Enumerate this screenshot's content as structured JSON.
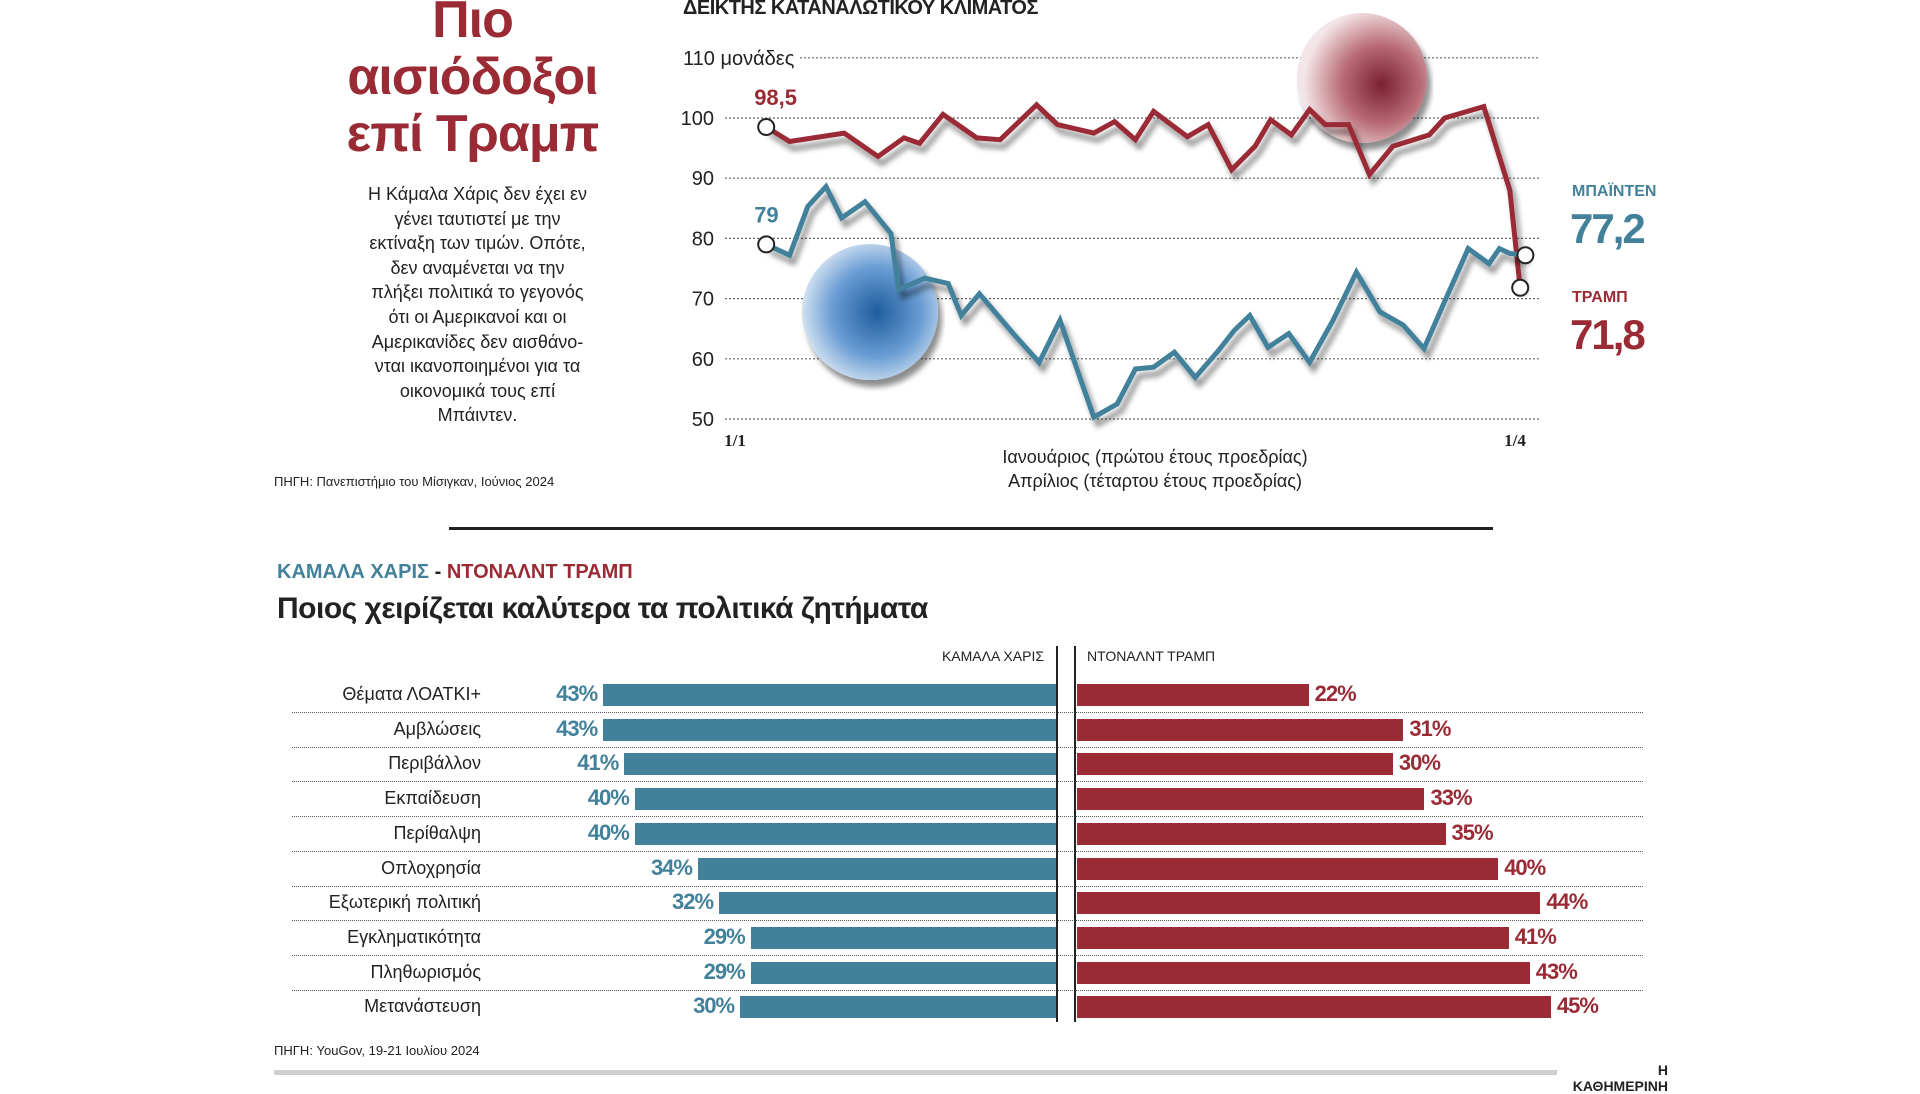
{
  "headline": {
    "lines": [
      "Πιο",
      "αισιόδοξοι",
      "επί Τραμπ"
    ]
  },
  "intro": {
    "lines": [
      "Η Κάμαλα Χάρις δεν έχει εν",
      "γένει ταυτιστεί με την",
      "εκτίναξη των τιμών. Οπότε,",
      "δεν αναμένεται να την",
      "πλήξει πολιτικά το γεγονός",
      "ότι οι Αμερικανοί και οι",
      "Αμερικανίδες δεν αισθάνο-",
      "νται ικανοποιημένοι για τα",
      "οικονομικά τους επί",
      "Μπάιντεν."
    ]
  },
  "source1": "ΠΗΓΗ: Πανεπιστήμιο του Μίσιγκαν, Ιούνιος 2024",
  "source2": "ΠΗΓΗ: YouGov, 19-21 Ιουλίου 2024",
  "brand": "Η ΚΑΘΗΜΕΡΙΝΗ",
  "colors": {
    "blue": "#43819b",
    "red": "#9a2b35"
  },
  "icons": {
    "trump_photo": "trump-portrait-icon",
    "biden_photo": "biden-portrait-icon"
  },
  "chart_data": [
    {
      "type": "line",
      "title": "ΔΕΙΚΤΗΣ ΚΑΤΑΝΑΛΩΤΙΚΟΥ ΚΛΙΜΑΤΟΣ",
      "ylabel": "μονάδες",
      "ylim": [
        50,
        110
      ],
      "yticks": [
        "50",
        "60",
        "70",
        "80",
        "90",
        "100",
        "110 μονάδες"
      ],
      "ytick_values": [
        50,
        60,
        70,
        80,
        90,
        100,
        110
      ],
      "xlim": [
        1,
        4
      ],
      "xticks": [
        "1/1",
        "1/4"
      ],
      "xtick_values": [
        1,
        4
      ],
      "xlabel_lines": [
        "Ιανουάριος (πρώτου έτους προεδρίας)",
        "Απρίλιος (τέταρτου έτους προεδρίας)"
      ],
      "grid": true,
      "series": [
        {
          "name": "ΤΡΑΜΠ",
          "color": "#9a2b35",
          "start_label": "98,5",
          "end_label": "71,8",
          "points": [
            [
              1.12,
              98.5
            ],
            [
              1.21,
              96.1
            ],
            [
              1.42,
              97.5
            ],
            [
              1.55,
              93.6
            ],
            [
              1.65,
              96.7
            ],
            [
              1.71,
              95.8
            ],
            [
              1.8,
              100.6
            ],
            [
              1.93,
              96.7
            ],
            [
              2.02,
              96.4
            ],
            [
              2.16,
              102.2
            ],
            [
              2.24,
              98.9
            ],
            [
              2.38,
              97.5
            ],
            [
              2.46,
              99.4
            ],
            [
              2.54,
              96.4
            ],
            [
              2.61,
              101.1
            ],
            [
              2.74,
              96.9
            ],
            [
              2.82,
              98.9
            ],
            [
              2.91,
              91.4
            ],
            [
              3.0,
              95.3
            ],
            [
              3.06,
              99.7
            ],
            [
              3.14,
              97.2
            ],
            [
              3.21,
              101.4
            ],
            [
              3.27,
              98.9
            ],
            [
              3.36,
              98.9
            ],
            [
              3.44,
              90.6
            ],
            [
              3.53,
              95.3
            ],
            [
              3.67,
              97.2
            ],
            [
              3.73,
              100.0
            ],
            [
              3.88,
              101.9
            ],
            [
              3.98,
              88.0
            ],
            [
              4.02,
              71.8
            ]
          ]
        },
        {
          "name": "ΜΠΑΪΝΤΕΝ",
          "color": "#43819b",
          "start_label": "79",
          "end_label": "77,2",
          "points": [
            [
              1.12,
              79.0
            ],
            [
              1.21,
              77.2
            ],
            [
              1.28,
              85.3
            ],
            [
              1.35,
              88.6
            ],
            [
              1.41,
              83.4
            ],
            [
              1.5,
              86.1
            ],
            [
              1.6,
              80.8
            ],
            [
              1.63,
              71.5
            ],
            [
              1.73,
              73.4
            ],
            [
              1.82,
              72.5
            ],
            [
              1.87,
              67.2
            ],
            [
              1.94,
              70.8
            ],
            [
              2.07,
              64.2
            ],
            [
              2.17,
              59.4
            ],
            [
              2.25,
              66.4
            ],
            [
              2.38,
              50.3
            ],
            [
              2.47,
              52.5
            ],
            [
              2.54,
              58.3
            ],
            [
              2.61,
              58.6
            ],
            [
              2.69,
              61.1
            ],
            [
              2.77,
              56.9
            ],
            [
              2.86,
              61.4
            ],
            [
              2.92,
              64.7
            ],
            [
              2.98,
              67.2
            ],
            [
              3.05,
              61.9
            ],
            [
              3.13,
              64.2
            ],
            [
              3.21,
              59.4
            ],
            [
              3.3,
              66.4
            ],
            [
              3.39,
              74.4
            ],
            [
              3.48,
              67.8
            ],
            [
              3.57,
              65.6
            ],
            [
              3.65,
              61.7
            ],
            [
              3.72,
              68.6
            ],
            [
              3.82,
              78.3
            ],
            [
              3.9,
              75.8
            ],
            [
              3.94,
              78.3
            ],
            [
              3.98,
              77.5
            ],
            [
              4.04,
              77.2
            ]
          ]
        }
      ]
    },
    {
      "type": "bar",
      "subtitle_left": "ΚΑΜΑΛΑ ΧΑΡΙΣ",
      "subtitle_sep": "-",
      "subtitle_right": "ΝΤΟΝΑΛΝΤ ΤΡΑΜΠ",
      "title": "Ποιος χειρίζεται καλύτερα τα πολιτικά ζητήματα",
      "categories": [
        "Θέματα ΛΟΑΤΚΙ+",
        "Αμβλώσεις",
        "Περιβάλλον",
        "Εκπαίδευση",
        "Περίθαλψη",
        "Οπλοχρησία",
        "Εξωτερική πολιτική",
        "Εγκληματικότητα",
        "Πληθωρισμός",
        "Μετανάστευση"
      ],
      "series": [
        {
          "name": "ΚΑΜΑΛΑ ΧΑΡΙΣ",
          "color": "#43819b",
          "values": [
            43,
            43,
            41,
            40,
            40,
            34,
            32,
            29,
            29,
            30
          ],
          "labels": [
            "43%",
            "43%",
            "41%",
            "40%",
            "40%",
            "34%",
            "32%",
            "29%",
            "29%",
            "30%"
          ]
        },
        {
          "name": "ΝΤΟΝΑΛΝΤ ΤΡΑΜΠ",
          "color": "#9a2b35",
          "values": [
            22,
            31,
            30,
            33,
            35,
            40,
            44,
            41,
            43,
            45
          ],
          "labels": [
            "22%",
            "31%",
            "30%",
            "33%",
            "35%",
            "40%",
            "44%",
            "41%",
            "43%",
            "45%"
          ]
        }
      ]
    }
  ]
}
